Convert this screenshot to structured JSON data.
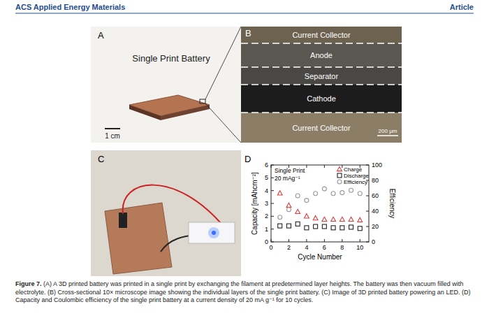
{
  "header": {
    "journal": "ACS Applied Energy Materials",
    "section": "Article"
  },
  "panels": {
    "a": {
      "label": "A",
      "title": "Single Print Battery",
      "scale_bar": "1 cm"
    },
    "b": {
      "label": "B",
      "layers": [
        "Current Collector",
        "Anode",
        "Separator",
        "Cathode",
        "Current Collector"
      ],
      "scale_bar": "200 μm"
    },
    "c": {
      "label": "C"
    },
    "d": {
      "label": "D"
    }
  },
  "chart_data": {
    "type": "scatter",
    "annotations": [
      "Single Print",
      "20 mAg⁻¹"
    ],
    "x_label": "Cycle Number",
    "y_label": "Capacity [mAhcm⁻²]",
    "y2_label": "Efficiency",
    "x": [
      1,
      2,
      3,
      4,
      5,
      6,
      7,
      8,
      9,
      10
    ],
    "series": [
      {
        "name": "Charge",
        "color": "#e03a3a",
        "marker": "triangle",
        "values": [
          3.8,
          2.85,
          2.35,
          2.0,
          1.85,
          1.75,
          1.75,
          1.75,
          1.75,
          1.7
        ]
      },
      {
        "name": "Discharge",
        "color": "#222222",
        "marker": "square",
        "values": [
          1.25,
          1.25,
          1.4,
          1.1,
          1.2,
          1.2,
          1.1,
          1.1,
          1.15,
          1.05
        ]
      },
      {
        "name": "Efficiency",
        "color": "#9a9a9a",
        "marker": "circle",
        "axis": "y2",
        "values": [
          32,
          42,
          60,
          54,
          63,
          69,
          63,
          64,
          67,
          63
        ]
      }
    ],
    "xlim": [
      0,
      11
    ],
    "xticks": [
      0,
      2,
      4,
      6,
      8,
      10
    ],
    "ylim": [
      0,
      6
    ],
    "yticks": [
      0,
      1,
      2,
      3,
      4,
      5,
      6
    ],
    "y2lim": [
      0,
      100
    ],
    "y2ticks": [
      0,
      20,
      40,
      60,
      80,
      100
    ],
    "legend": "top-right",
    "grid": false
  },
  "caption": {
    "label": "Figure 7.",
    "text": "(A) A 3D printed battery was printed in a single print by exchanging the filament at predetermined layer heights. The battery was then vacuum filled with electrolyte. (B) Cross-sectional 10× microscope image showing the individual layers of the single print battery. (C) Image of 3D printed battery powering an LED. (D) Capacity and Coulombic efficiency of the single print battery at a current density of 20 mA g⁻¹ for 10 cycles."
  }
}
